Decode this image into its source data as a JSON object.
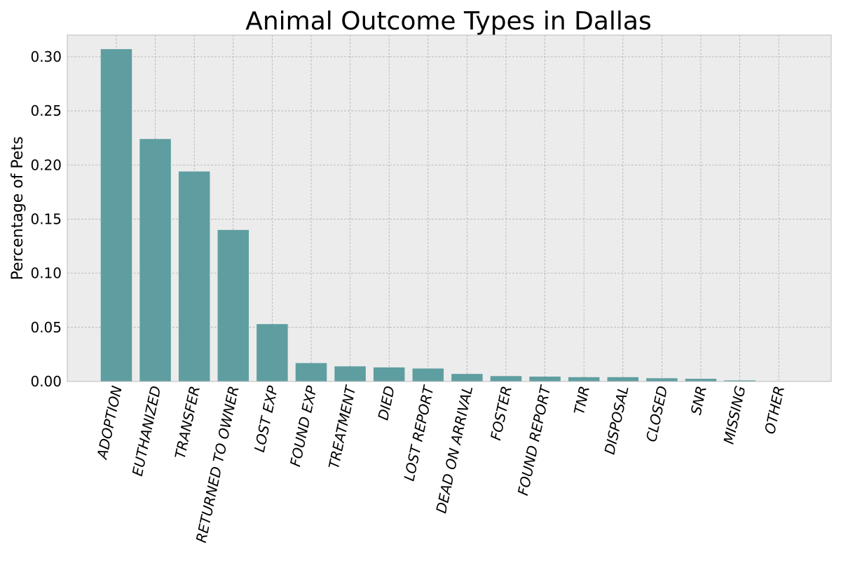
{
  "chart_data": {
    "type": "bar",
    "title": "Animal Outcome Types in Dallas",
    "xlabel": "",
    "ylabel": "Percentage of Pets",
    "categories": [
      "ADOPTION",
      "EUTHANIZED",
      "TRANSFER",
      "RETURNED TO OWNER",
      "LOST EXP",
      "FOUND EXP",
      "TREATMENT",
      "DIED",
      "LOST REPORT",
      "DEAD ON ARRIVAL",
      "FOSTER",
      "FOUND REPORT",
      "TNR",
      "DISPOSAL",
      "CLOSED",
      "SNR",
      "MISSING",
      "OTHER"
    ],
    "values": [
      0.307,
      0.224,
      0.194,
      0.14,
      0.053,
      0.017,
      0.014,
      0.013,
      0.012,
      0.007,
      0.005,
      0.0045,
      0.004,
      0.004,
      0.003,
      0.0025,
      0.001,
      0.0002
    ],
    "ylim": [
      0,
      0.32
    ],
    "yticks": [
      0.0,
      0.05,
      0.1,
      0.15,
      0.2,
      0.25,
      0.3
    ],
    "ytick_labels": [
      "0.00",
      "0.05",
      "0.10",
      "0.15",
      "0.20",
      "0.25",
      "0.30"
    ],
    "grid": true,
    "bar_color": "#5f9ea0",
    "plot_background": "#ececec",
    "grid_color": "#b0b0b0"
  }
}
